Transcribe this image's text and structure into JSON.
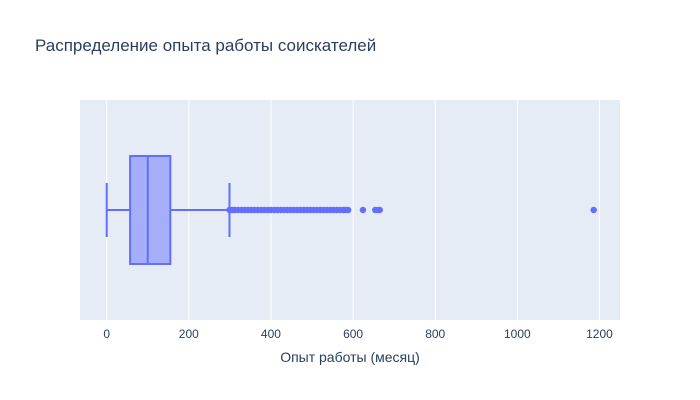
{
  "chart_data": {
    "type": "box",
    "title": "Распределение опыта работы соискателей",
    "xlabel": "Опыт работы (месяц)",
    "ylabel": "",
    "xlim": [
      -65,
      1250
    ],
    "xticks": [
      0,
      200,
      400,
      600,
      800,
      1000,
      1200
    ],
    "xtick_labels": [
      "0",
      "200",
      "400",
      "600",
      "800",
      "1000",
      "1200"
    ],
    "orientation": "horizontal",
    "grid": true,
    "box": {
      "min": 0,
      "q1": 57,
      "median": 100,
      "q3": 155,
      "whisker_high": 299
    },
    "outliers": [
      299,
      305,
      312,
      320,
      328,
      336,
      344,
      352,
      360,
      368,
      376,
      384,
      392,
      400,
      408,
      416,
      424,
      432,
      440,
      448,
      456,
      464,
      472,
      480,
      488,
      496,
      504,
      512,
      520,
      528,
      536,
      544,
      552,
      560,
      568,
      576,
      581,
      588,
      624,
      654,
      661,
      665,
      1186
    ],
    "colors": {
      "box_fill": "#a5aef8",
      "box_line": "#636efa",
      "plot_bg": "#e5ecf6",
      "grid": "#ffffff",
      "text": "#2a3f5f"
    }
  }
}
